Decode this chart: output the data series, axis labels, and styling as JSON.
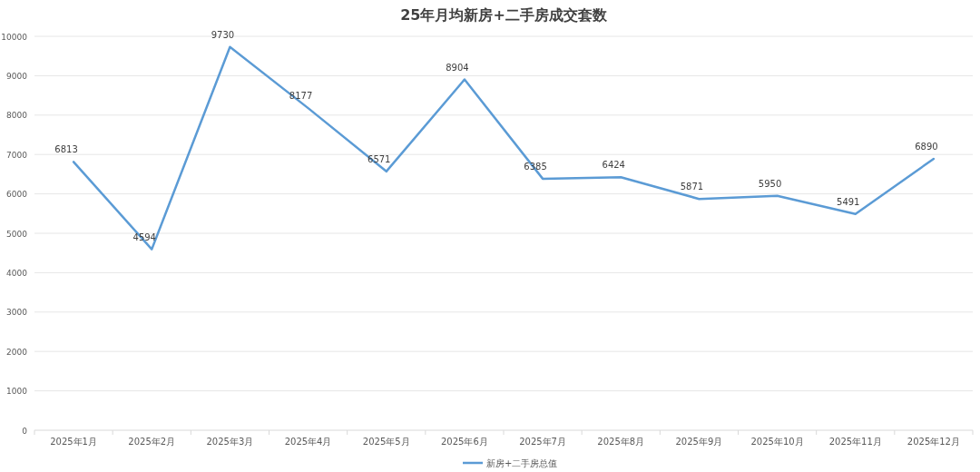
{
  "chart_data": {
    "type": "line",
    "title": "25年月均新房+二手房成交套数",
    "categories": [
      "2025年1月",
      "2025年2月",
      "2025年3月",
      "2025年4月",
      "2025年5月",
      "2025年6月",
      "2025年7月",
      "2025年8月",
      "2025年9月",
      "2025年10月",
      "2025年11月",
      "2025年12月"
    ],
    "series": [
      {
        "name": "新房+二手房总值",
        "color": "#5b9bd5",
        "values": [
          6813,
          4594,
          9730,
          8177,
          6571,
          8904,
          6385,
          6424,
          5871,
          5950,
          5491,
          6890
        ]
      }
    ],
    "ylim": [
      0,
      10000
    ],
    "yticks": [
      0,
      1000,
      2000,
      3000,
      4000,
      5000,
      6000,
      7000,
      8000,
      9000,
      10000
    ],
    "grid": "y",
    "legend": "bottom",
    "data_labels": true
  }
}
